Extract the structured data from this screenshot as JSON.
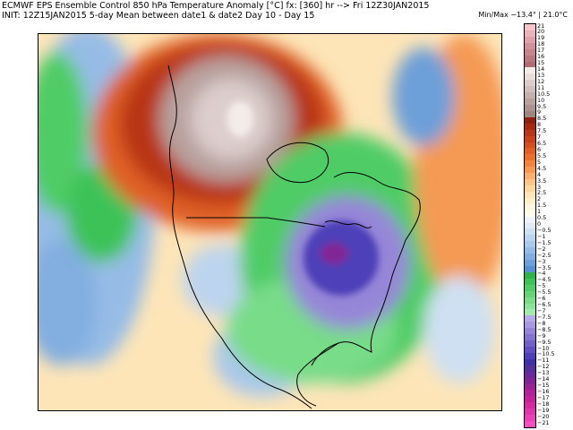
{
  "header": {
    "title": "ECMWF EPS Ensemble Control 850 hPa Temperature Anomaly [°C] fx: [360] hr --> Fri 12Z30JAN2015",
    "subtitle": "INIT: 12Z15JAN2015 5-day Mean between date1 & date2  Day 10 - Day 15",
    "minmax": "Min/Max −13.4° | 21.0°C"
  },
  "colorbar": {
    "levels": [
      "21",
      "20",
      "19",
      "18",
      "17",
      "16",
      "15",
      "14",
      "13",
      "12",
      "11",
      "10.5",
      "10",
      "9.5",
      "9",
      "8.5",
      "8",
      "7.5",
      "7",
      "6.5",
      "6",
      "5.5",
      "5",
      "4.5",
      "4",
      "3.5",
      "3",
      "2.5",
      "2",
      "1.5",
      "1",
      "0.5",
      "0",
      "−0.5",
      "−1",
      "−1.5",
      "−2",
      "−2.5",
      "−3",
      "−3.5",
      "−4",
      "−4.5",
      "−5",
      "−5.5",
      "−6",
      "−6.5",
      "−7",
      "−7.5",
      "−8",
      "−8.5",
      "−9",
      "−9.5",
      "−10",
      "−10.5",
      "−11",
      "−12",
      "−13",
      "−14",
      "−15",
      "−16",
      "−17",
      "−18",
      "−19",
      "−20",
      "−21"
    ],
    "colors": [
      "#f8c4cc",
      "#ecb2bb",
      "#dfa2ab",
      "#d2929b",
      "#c6858c",
      "#b9787f",
      "#ad6d73",
      "#f4eceb",
      "#e9dedc",
      "#dccecc",
      "#d0bfbc",
      "#c4b0ad",
      "#b8a19e",
      "#ad938f",
      "#a08680",
      "#8e2010",
      "#a52a10",
      "#b83515",
      "#c9421b",
      "#d55020",
      "#e06028",
      "#ea7030",
      "#f18540",
      "#f59a55",
      "#f8b070",
      "#fbc588",
      "#fcd7a0",
      "#fde5b8",
      "#fdf0cc",
      "#fef7e0",
      "#fffcee",
      "#eef4fa",
      "#dfeaf6",
      "#cfe0f2",
      "#bdd4ee",
      "#aac8ea",
      "#96bce6",
      "#82aee0",
      "#6d9fd8",
      "#5891d0",
      "#2fb44a",
      "#3dc258",
      "#50cc66",
      "#64d477",
      "#78dc88",
      "#8ee39a",
      "#a4e9ad",
      "#b8a8e8",
      "#a898e0",
      "#9686d8",
      "#8474d0",
      "#7262c8",
      "#6050c0",
      "#4e40b8",
      "#4030a8",
      "#52309a",
      "#6a2a98",
      "#822696",
      "#9a2494",
      "#b02296",
      "#c42498",
      "#d42c9e",
      "#e036a8",
      "#e842b4",
      "#f050c0"
    ]
  },
  "map": {
    "layers": [
      {
        "label": "pacific-green",
        "color": "#38b454"
      },
      {
        "label": "pacific-blue",
        "color": "#6d9fd8"
      },
      {
        "label": "west-warm",
        "color": "#e06028"
      },
      {
        "label": "canada-extreme",
        "color": "#c4b0ad"
      },
      {
        "label": "east-cold",
        "color": "#50cc66"
      },
      {
        "label": "core-purple",
        "color": "#4e40b8"
      },
      {
        "label": "atlantic-warm",
        "color": "#f18540"
      }
    ]
  }
}
